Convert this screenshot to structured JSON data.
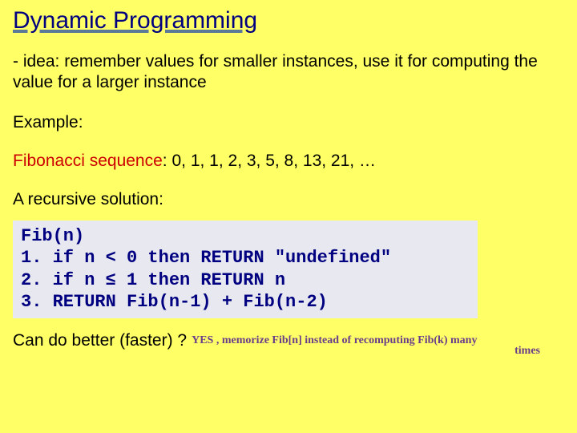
{
  "colors": {
    "background": "#ffff66",
    "title": "#000080",
    "title_underline": "#5b7a9a",
    "body_text": "#000000",
    "fibonacci_label": "#cc0000",
    "code_background": "#e8e8f0",
    "code_text": "#000080",
    "handwriting": "#6a3d8a"
  },
  "typography": {
    "title_fontsize": 30,
    "body_fontsize": 21,
    "code_fontsize": 22,
    "handwriting_fontsize": 14,
    "body_font": "Comic Sans MS",
    "code_font": "Courier New"
  },
  "slide": {
    "title": "Dynamic Programming",
    "idea": "- idea: remember values for smaller instances, use it for computing the value for a larger instance",
    "example_label": "Example:",
    "fibonacci_label": "Fibonacci sequence",
    "fibonacci_colon": ": ",
    "fibonacci_values": "0, 1, 1, 2, 3, 5, 8, 13, 21, …",
    "recursive_label": "A recursive solution:",
    "code": "Fib(n)\n1. if n < 0 then RETURN \"undefined\"\n2. if n ≤ 1 then RETURN n\n3. RETURN Fib(n-1) + Fib(n-2)",
    "question": "Can do better (faster) ?",
    "handwritten_line1": "YES , memorize  Fib[n]  instead of recomputing  Fib(k) many",
    "handwritten_line2": "times"
  }
}
